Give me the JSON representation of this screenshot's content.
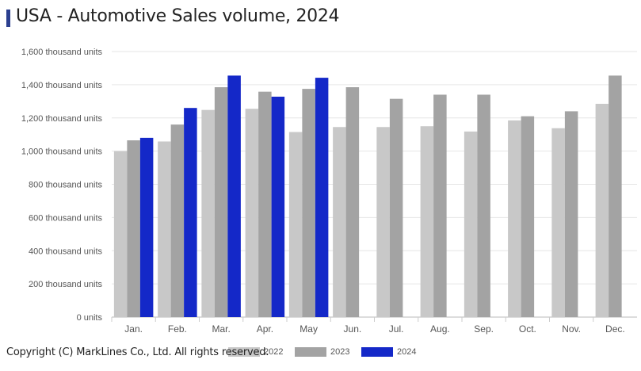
{
  "header": {
    "title": "USA - Automotive Sales volume, 2024"
  },
  "footer": {
    "copyright": "Copyright (C) MarkLines Co., Ltd. All rights reserved."
  },
  "chart_data": {
    "type": "bar",
    "title": "USA - Automotive Sales volume, 2024",
    "xlabel": "",
    "ylabel": "",
    "ylim": [
      0,
      1600
    ],
    "ytick_values": [
      0,
      200,
      400,
      600,
      800,
      1000,
      1200,
      1400,
      1600
    ],
    "ytick_labels": [
      "0 units",
      "200 thousand units",
      "400 thousand units",
      "600 thousand units",
      "800 thousand units",
      "1,000 thousand units",
      "1,200 thousand units",
      "1,400 thousand units",
      "1,600 thousand units"
    ],
    "categories": [
      "Jan.",
      "Feb.",
      "Mar.",
      "Apr.",
      "May",
      "Jun.",
      "Jul.",
      "Aug.",
      "Sep.",
      "Oct.",
      "Nov.",
      "Dec."
    ],
    "series": [
      {
        "name": "2022",
        "color": "#c8c8c8",
        "values": [
          1000,
          1058,
          1248,
          1255,
          1115,
          1145,
          1145,
          1150,
          1118,
          1185,
          1138,
          1285
        ]
      },
      {
        "name": "2023",
        "color": "#a3a3a3",
        "values": [
          1065,
          1160,
          1385,
          1358,
          1375,
          1385,
          1315,
          1340,
          1340,
          1210,
          1240,
          1455
        ]
      },
      {
        "name": "2024",
        "color": "#1428c8",
        "values": [
          1080,
          1260,
          1455,
          1328,
          1442,
          null,
          null,
          null,
          null,
          null,
          null,
          null
        ]
      }
    ],
    "grid": true,
    "legend_position": "bottom"
  }
}
